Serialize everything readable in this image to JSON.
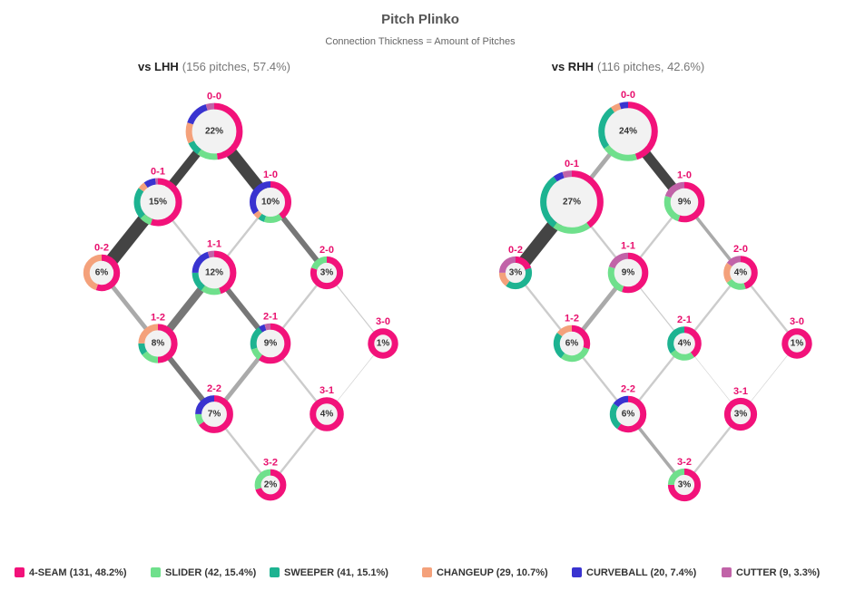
{
  "title": "Pitch Plinko",
  "subtitle": "Connection Thickness = Amount of Pitches",
  "legend": [
    {
      "label": "4-SEAM (131, 48.2%)",
      "color": "#f2127a"
    },
    {
      "label": "SLIDER (42, 15.4%)",
      "color": "#6fe08c"
    },
    {
      "label": "SWEEPER (41, 15.1%)",
      "color": "#1db391"
    },
    {
      "label": "CHANGEUP (29, 10.7%)",
      "color": "#f4a17b"
    },
    {
      "label": "CURVEBALL (20, 7.4%)",
      "color": "#3933d0"
    },
    {
      "label": "CUTTER (9, 3.3%)",
      "color": "#c163a8"
    }
  ],
  "panels": [
    {
      "label": "vs LHH",
      "detail": "(156 pitches, 57.4%)",
      "nodes": [
        {
          "count": "0-0",
          "pct": "22%",
          "mix": [
            48,
            12,
            8,
            12,
            15,
            5
          ]
        },
        {
          "count": "0-1",
          "pct": "15%",
          "mix": [
            55,
            8,
            22,
            5,
            8,
            2
          ]
        },
        {
          "count": "1-0",
          "pct": "10%",
          "mix": [
            40,
            15,
            5,
            5,
            35,
            0
          ]
        },
        {
          "count": "0-2",
          "pct": "6%",
          "mix": [
            55,
            0,
            0,
            45,
            0,
            0
          ]
        },
        {
          "count": "1-1",
          "pct": "12%",
          "mix": [
            45,
            15,
            15,
            0,
            20,
            5
          ]
        },
        {
          "count": "2-0",
          "pct": "3%",
          "mix": [
            80,
            20,
            0,
            0,
            0,
            0
          ]
        },
        {
          "count": "1-2",
          "pct": "8%",
          "mix": [
            50,
            15,
            10,
            25,
            0,
            0
          ]
        },
        {
          "count": "2-1",
          "pct": "9%",
          "mix": [
            60,
            10,
            20,
            0,
            5,
            5
          ]
        },
        {
          "count": "3-0",
          "pct": "1%",
          "mix": [
            100,
            0,
            0,
            0,
            0,
            0
          ]
        },
        {
          "count": "2-2",
          "pct": "7%",
          "mix": [
            65,
            10,
            0,
            0,
            25,
            0
          ]
        },
        {
          "count": "3-1",
          "pct": "4%",
          "mix": [
            100,
            0,
            0,
            0,
            0,
            0
          ]
        },
        {
          "count": "3-2",
          "pct": "2%",
          "mix": [
            70,
            30,
            0,
            0,
            0,
            0
          ]
        }
      ],
      "edges": [
        {
          "from": 0,
          "to": 1,
          "weight": 8
        },
        {
          "from": 0,
          "to": 2,
          "weight": 11
        },
        {
          "from": 1,
          "to": 3,
          "weight": 12
        },
        {
          "from": 1,
          "to": 4,
          "weight": 2
        },
        {
          "from": 2,
          "to": 4,
          "weight": 2
        },
        {
          "from": 2,
          "to": 5,
          "weight": 5
        },
        {
          "from": 3,
          "to": 6,
          "weight": 4
        },
        {
          "from": 4,
          "to": 6,
          "weight": 7
        },
        {
          "from": 4,
          "to": 7,
          "weight": 5
        },
        {
          "from": 5,
          "to": 7,
          "weight": 2
        },
        {
          "from": 5,
          "to": 8,
          "weight": 1
        },
        {
          "from": 6,
          "to": 9,
          "weight": 5
        },
        {
          "from": 7,
          "to": 9,
          "weight": 4
        },
        {
          "from": 7,
          "to": 10,
          "weight": 2
        },
        {
          "from": 8,
          "to": 10,
          "weight": 0.5
        },
        {
          "from": 9,
          "to": 11,
          "weight": 2
        },
        {
          "from": 10,
          "to": 11,
          "weight": 2
        }
      ]
    },
    {
      "label": "vs RHH",
      "detail": "(116 pitches, 42.6%)",
      "nodes": [
        {
          "count": "0-0",
          "pct": "24%",
          "mix": [
            45,
            20,
            25,
            5,
            5,
            0
          ]
        },
        {
          "count": "0-1",
          "pct": "27%",
          "mix": [
            40,
            20,
            30,
            0,
            5,
            5
          ]
        },
        {
          "count": "1-0",
          "pct": "9%",
          "mix": [
            55,
            25,
            0,
            0,
            0,
            20
          ]
        },
        {
          "count": "0-2",
          "pct": "3%",
          "mix": [
            20,
            0,
            40,
            15,
            0,
            25
          ]
        },
        {
          "count": "1-1",
          "pct": "9%",
          "mix": [
            55,
            25,
            0,
            0,
            0,
            20
          ]
        },
        {
          "count": "2-0",
          "pct": "4%",
          "mix": [
            45,
            20,
            0,
            20,
            0,
            15
          ]
        },
        {
          "count": "1-2",
          "pct": "6%",
          "mix": [
            30,
            30,
            25,
            15,
            0,
            0
          ]
        },
        {
          "count": "2-1",
          "pct": "4%",
          "mix": [
            40,
            25,
            35,
            0,
            0,
            0
          ]
        },
        {
          "count": "3-0",
          "pct": "1%",
          "mix": [
            100,
            0,
            0,
            0,
            0,
            0
          ]
        },
        {
          "count": "2-2",
          "pct": "6%",
          "mix": [
            60,
            0,
            25,
            0,
            15,
            0
          ]
        },
        {
          "count": "3-1",
          "pct": "3%",
          "mix": [
            100,
            0,
            0,
            0,
            0,
            0
          ]
        },
        {
          "count": "3-2",
          "pct": "3%",
          "mix": [
            75,
            25,
            0,
            0,
            0,
            0
          ]
        }
      ],
      "edges": [
        {
          "from": 0,
          "to": 1,
          "weight": 4
        },
        {
          "from": 0,
          "to": 2,
          "weight": 9
        },
        {
          "from": 1,
          "to": 3,
          "weight": 12
        },
        {
          "from": 1,
          "to": 4,
          "weight": 2
        },
        {
          "from": 2,
          "to": 4,
          "weight": 2
        },
        {
          "from": 2,
          "to": 5,
          "weight": 3
        },
        {
          "from": 3,
          "to": 6,
          "weight": 2
        },
        {
          "from": 4,
          "to": 6,
          "weight": 4
        },
        {
          "from": 4,
          "to": 7,
          "weight": 1
        },
        {
          "from": 5,
          "to": 7,
          "weight": 2
        },
        {
          "from": 5,
          "to": 8,
          "weight": 2
        },
        {
          "from": 6,
          "to": 9,
          "weight": 2
        },
        {
          "from": 7,
          "to": 9,
          "weight": 2
        },
        {
          "from": 7,
          "to": 10,
          "weight": 0.5
        },
        {
          "from": 8,
          "to": 10,
          "weight": 0.5
        },
        {
          "from": 9,
          "to": 11,
          "weight": 3
        },
        {
          "from": 10,
          "to": 11,
          "weight": 2
        }
      ]
    }
  ]
}
